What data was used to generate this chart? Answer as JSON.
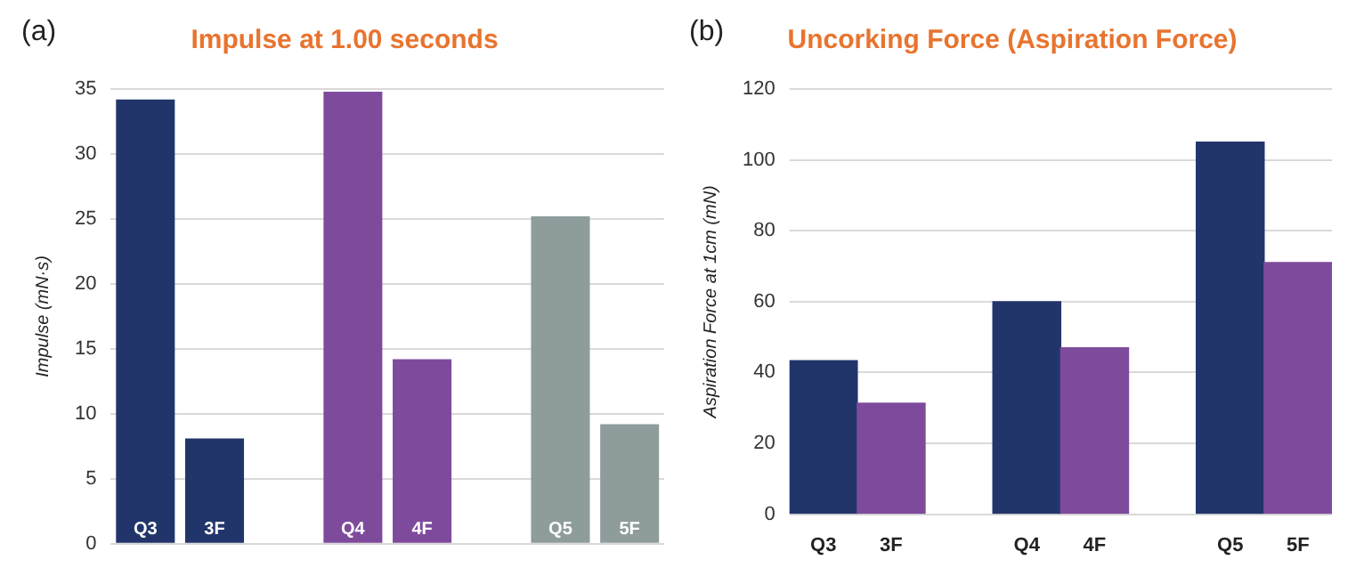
{
  "chart_data": [
    {
      "type": "bar",
      "title": "Impulse at 1.00 seconds",
      "ylabel": "Impulse (mN·s)",
      "annotations": [
        "(a)"
      ],
      "categories": [
        "Q3",
        "3F",
        "Q4",
        "4F",
        "Q5",
        "5F"
      ],
      "values": [
        34.2,
        8.1,
        34.8,
        14.2,
        25.2,
        9.2
      ],
      "colors": [
        "#22356b",
        "#22356b",
        "#7e4b9c",
        "#7e4b9c",
        "#8e9c9c",
        "#8e9c9c"
      ],
      "ylim": [
        0,
        35
      ],
      "yticks": [
        0,
        5,
        10,
        15,
        20,
        25,
        30,
        35
      ],
      "grid": "y",
      "legend": false
    },
    {
      "type": "bar",
      "title": "Uncorking Force (Aspiration Force)",
      "ylabel": "Aspiration Force at 1cm (mN)",
      "annotations": [
        "(b)"
      ],
      "categories": [
        "Q3",
        "3F",
        "Q4",
        "4F",
        "Q5",
        "5F"
      ],
      "values": [
        43.3,
        31.3,
        60,
        47,
        105,
        71
      ],
      "colors": [
        "#22356b",
        "#7e4b9c",
        "#22356b",
        "#7e4b9c",
        "#22356b",
        "#7e4b9c"
      ],
      "ylim": [
        0,
        120
      ],
      "yticks": [
        0,
        20,
        40,
        60,
        80,
        100,
        120
      ],
      "grid": "y",
      "legend": false
    }
  ]
}
